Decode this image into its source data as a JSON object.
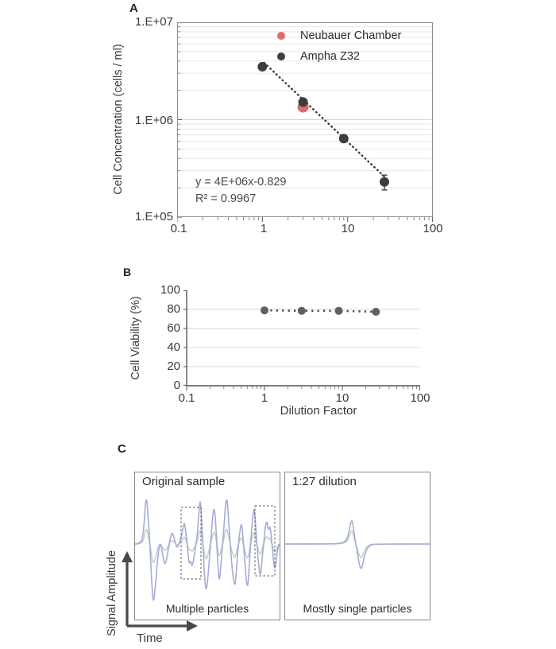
{
  "figure": {
    "panel_a_label": "A",
    "panel_b_label": "B",
    "panel_c_label": "C"
  },
  "chart_data": [
    {
      "id": "panel_a",
      "type": "scatter",
      "x_scale": "log",
      "y_scale": "log",
      "xlim": [
        0.1,
        100
      ],
      "ylim": [
        100000,
        10000000
      ],
      "ylabel": "Cell Concentration (cells / ml)",
      "xlabel": "",
      "x_tick_labels": [
        "0.1",
        "1",
        "10",
        "100"
      ],
      "y_tick_labels": [
        "1.E+07",
        "1.E+06",
        "1.E+05"
      ],
      "grid": "horizontal-log-minor",
      "legend_position": "top-right-inside",
      "legend": [
        {
          "label": "Neubauer Chamber",
          "color": "#e06a6a"
        },
        {
          "label": "Ampha Z32",
          "color": "#3d3d3d"
        }
      ],
      "series": [
        {
          "name": "Neubauer Chamber",
          "color": "#e06a6a",
          "marker_r": 7,
          "points": [
            {
              "x": 3,
              "y": 1350000,
              "err": 130000
            }
          ]
        },
        {
          "name": "Ampha Z32",
          "color": "#3d3d3d",
          "marker_r": 6,
          "points": [
            {
              "x": 1,
              "y": 3500000
            },
            {
              "x": 3,
              "y": 1520000,
              "err": 90000
            },
            {
              "x": 9,
              "y": 640000
            },
            {
              "x": 27,
              "y": 230000,
              "err": 40000
            }
          ]
        }
      ],
      "trendline": {
        "type": "power",
        "a": 4000000,
        "b": -0.829,
        "x_from": 1.05,
        "x_to": 30,
        "equation": "y = 4E+06x-0.829",
        "r_squared": "R² = 0.9967"
      }
    },
    {
      "id": "panel_b",
      "type": "scatter",
      "x_scale": "log",
      "y_scale": "linear",
      "xlim": [
        0.1,
        100
      ],
      "ylim": [
        0,
        100
      ],
      "ylabel": "Cell Viability (%)",
      "xlabel": "Dilution Factor",
      "x_tick_labels": [
        "0.1",
        "1",
        "10",
        "100"
      ],
      "y_tick_labels": [
        "100",
        "80",
        "60",
        "40",
        "20",
        "0"
      ],
      "grid": "horizontal-20s",
      "series": [
        {
          "name": "Cell Viability",
          "color": "#5f5f5f",
          "marker_r": 5,
          "points": [
            {
              "x": 1,
              "y": 79
            },
            {
              "x": 3,
              "y": 78.5
            },
            {
              "x": 9,
              "y": 78.5
            },
            {
              "x": 27,
              "y": 77.5
            }
          ]
        }
      ],
      "dotted_line_through_points": true
    },
    {
      "id": "panel_c",
      "type": "line",
      "axis": {
        "y_label": "Signal Amplitude",
        "x_label": "Time"
      },
      "colors": {
        "trace_primary": "#a6abd6",
        "trace_secondary": "#bdd0c1"
      },
      "panels": [
        {
          "title": "Original sample",
          "caption": "Multiple particles",
          "secondary_scale": 0.33,
          "highlight_boxes": [
            [
              58,
              44,
              25,
              90
            ],
            [
              151,
              42,
              25,
              88
            ]
          ],
          "trace": [
            [
              0,
              0
            ],
            [
              8,
              0
            ],
            [
              11,
              18
            ],
            [
              14,
              66
            ],
            [
              17,
              28
            ],
            [
              19,
              -6
            ],
            [
              21,
              -48
            ],
            [
              23,
              -78
            ],
            [
              26,
              -50
            ],
            [
              29,
              -12
            ],
            [
              32,
              4
            ],
            [
              35,
              -16
            ],
            [
              38,
              -28
            ],
            [
              41,
              -12
            ],
            [
              44,
              6
            ],
            [
              47,
              16
            ],
            [
              50,
              4
            ],
            [
              53,
              -6
            ],
            [
              56,
              2
            ],
            [
              59,
              12
            ],
            [
              62,
              30
            ],
            [
              64,
              14
            ],
            [
              66,
              -4
            ],
            [
              68,
              -26
            ],
            [
              70,
              -20
            ],
            [
              72,
              -30
            ],
            [
              75,
              -12
            ],
            [
              78,
              8
            ],
            [
              80,
              32
            ],
            [
              82,
              60
            ],
            [
              84,
              30
            ],
            [
              86,
              -12
            ],
            [
              88,
              -50
            ],
            [
              90,
              -60
            ],
            [
              93,
              -28
            ],
            [
              96,
              12
            ],
            [
              98,
              38
            ],
            [
              100,
              47
            ],
            [
              102,
              20
            ],
            [
              104,
              -22
            ],
            [
              106,
              -50
            ],
            [
              108,
              -28
            ],
            [
              110,
              -4
            ],
            [
              112,
              22
            ],
            [
              114,
              52
            ],
            [
              116,
              58
            ],
            [
              118,
              28
            ],
            [
              120,
              -2
            ],
            [
              122,
              -28
            ],
            [
              124,
              -45
            ],
            [
              126,
              -54
            ],
            [
              128,
              -28
            ],
            [
              130,
              -2
            ],
            [
              132,
              16
            ],
            [
              134,
              28
            ],
            [
              136,
              8
            ],
            [
              138,
              -20
            ],
            [
              140,
              -46
            ],
            [
              142,
              -56
            ],
            [
              144,
              -24
            ],
            [
              146,
              8
            ],
            [
              148,
              32
            ],
            [
              150,
              48
            ],
            [
              152,
              22
            ],
            [
              154,
              -8
            ],
            [
              156,
              -30
            ],
            [
              158,
              -42
            ],
            [
              160,
              -18
            ],
            [
              162,
              0
            ],
            [
              164,
              22
            ],
            [
              166,
              30
            ],
            [
              168,
              16
            ],
            [
              170,
              24
            ],
            [
              172,
              4
            ],
            [
              174,
              -18
            ],
            [
              176,
              -34
            ],
            [
              178,
              -18
            ],
            [
              180,
              -4
            ],
            [
              182,
              0
            ]
          ]
        },
        {
          "title": "1:27 dilution",
          "caption": "Mostly single particles",
          "secondary_scale": 0.55,
          "highlight_boxes": [],
          "trace": [
            [
              0,
              0
            ],
            [
              60,
              0
            ],
            [
              70,
              1
            ],
            [
              76,
              3
            ],
            [
              80,
              12
            ],
            [
              84,
              35
            ],
            [
              87,
              12
            ],
            [
              90,
              -6
            ],
            [
              93,
              -24
            ],
            [
              96,
              -34
            ],
            [
              100,
              -14
            ],
            [
              104,
              -4
            ],
            [
              108,
              -1
            ],
            [
              114,
              0
            ],
            [
              182,
              0
            ]
          ]
        }
      ]
    }
  ]
}
